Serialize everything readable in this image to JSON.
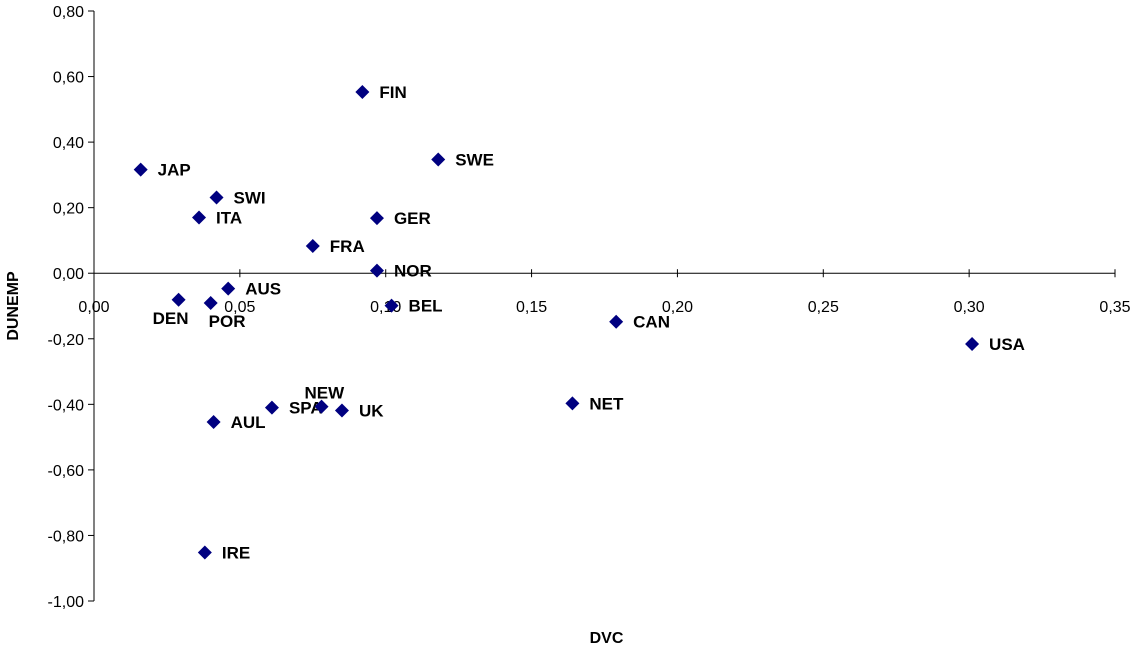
{
  "chart_data": {
    "type": "scatter",
    "xlabel": "DVC",
    "ylabel": "DUNEMP",
    "xlim": [
      0,
      0.35
    ],
    "ylim": [
      -1.0,
      0.8
    ],
    "x_ticks": [
      0,
      0.05,
      0.1,
      0.15,
      0.2,
      0.25,
      0.3,
      0.35
    ],
    "y_ticks": [
      -1.0,
      -0.8,
      -0.6,
      -0.4,
      -0.2,
      0.0,
      0.2,
      0.4,
      0.6,
      0.8
    ],
    "x_tick_labels": [
      "0,00",
      "0,05",
      "0,10",
      "0,15",
      "0,20",
      "0,25",
      "0,30",
      "0,35"
    ],
    "y_tick_labels": [
      "-1,00",
      "-0,80",
      "-0,60",
      "-0,40",
      "-0,20",
      "0,00",
      "0,20",
      "0,40",
      "0,60",
      "0,80"
    ],
    "grid": false,
    "marker_color": "#000080",
    "points": [
      {
        "label": "FIN",
        "x": 0.092,
        "y": 0.553
      },
      {
        "label": "SWE",
        "x": 0.118,
        "y": 0.347
      },
      {
        "label": "JAP",
        "x": 0.016,
        "y": 0.316
      },
      {
        "label": "SWI",
        "x": 0.042,
        "y": 0.231
      },
      {
        "label": "ITA",
        "x": 0.036,
        "y": 0.17
      },
      {
        "label": "GER",
        "x": 0.097,
        "y": 0.168
      },
      {
        "label": "FRA",
        "x": 0.075,
        "y": 0.083
      },
      {
        "label": "NOR",
        "x": 0.097,
        "y": 0.008
      },
      {
        "label": "AUS",
        "x": 0.046,
        "y": -0.047
      },
      {
        "label": "DEN",
        "x": 0.029,
        "y": -0.081
      },
      {
        "label": "POR",
        "x": 0.04,
        "y": -0.091
      },
      {
        "label": "BEL",
        "x": 0.102,
        "y": -0.099
      },
      {
        "label": "CAN",
        "x": 0.179,
        "y": -0.148
      },
      {
        "label": "USA",
        "x": 0.301,
        "y": -0.216
      },
      {
        "label": "NET",
        "x": 0.164,
        "y": -0.397
      },
      {
        "label": "SPA",
        "x": 0.061,
        "y": -0.41
      },
      {
        "label": "NEW",
        "x": 0.078,
        "y": -0.407
      },
      {
        "label": "UK",
        "x": 0.085,
        "y": -0.419
      },
      {
        "label": "AUL",
        "x": 0.041,
        "y": -0.454
      },
      {
        "label": "IRE",
        "x": 0.038,
        "y": -0.852
      }
    ]
  }
}
